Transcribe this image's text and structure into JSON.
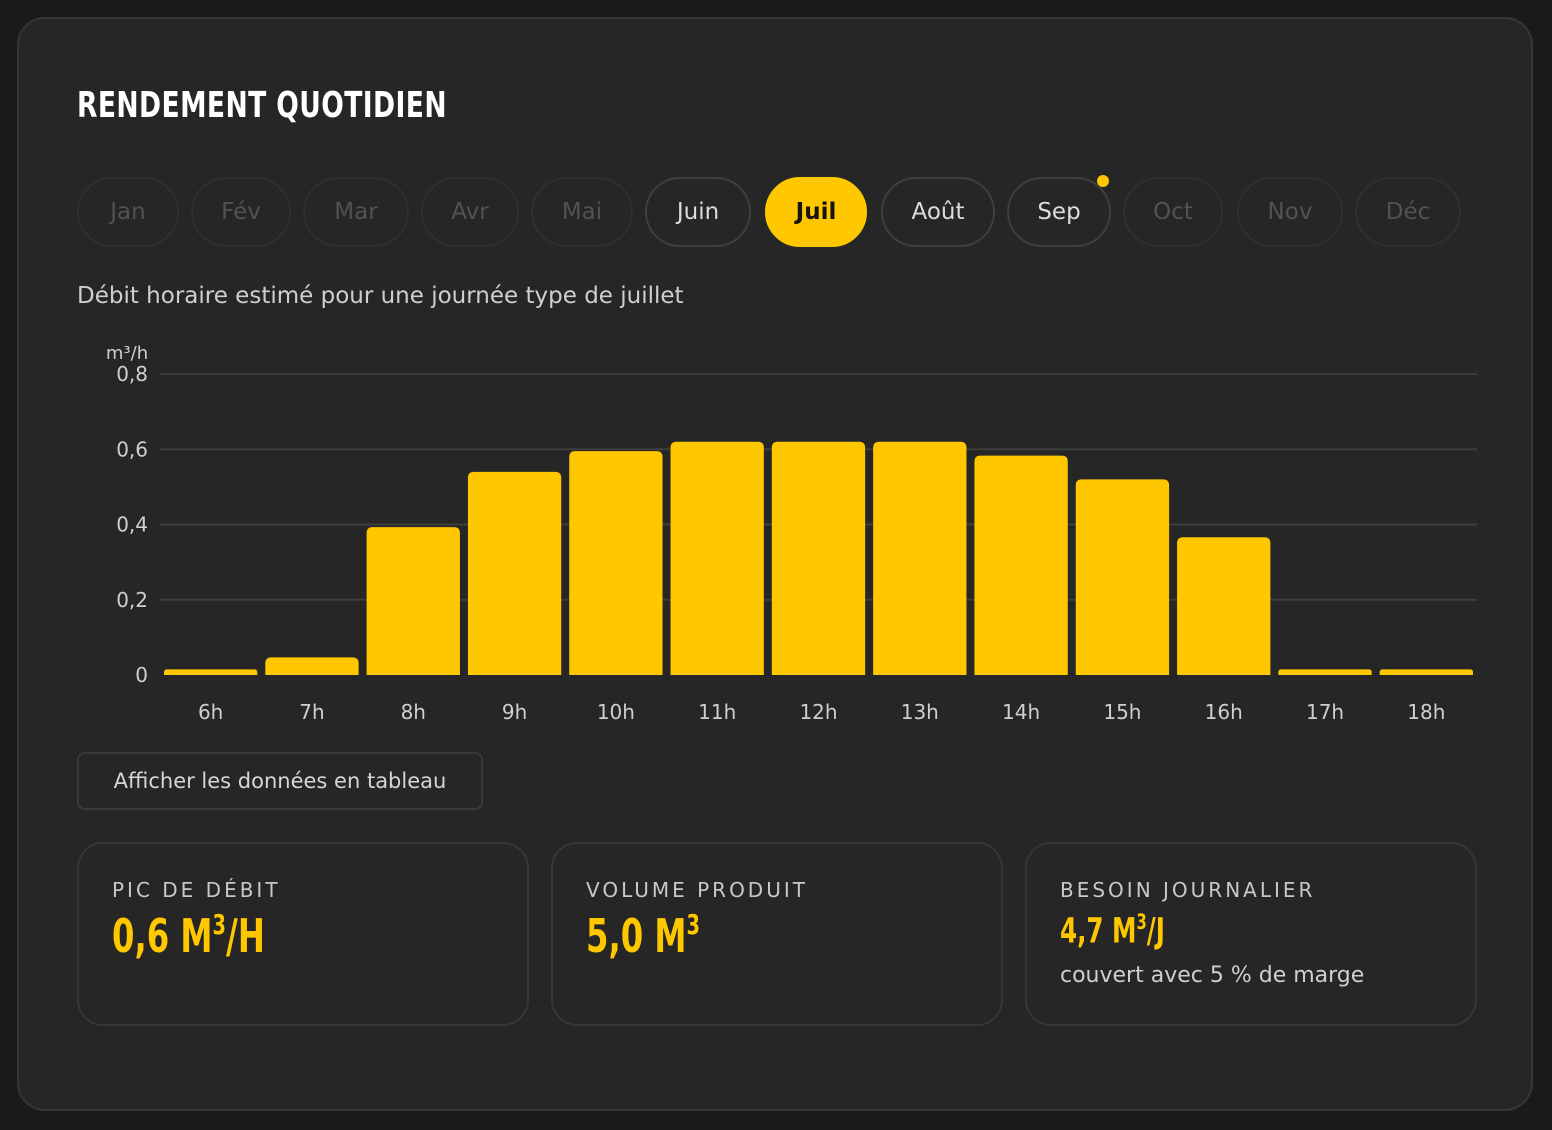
{
  "title": "RENDEMENT QUOTIDIEN",
  "months": [
    {
      "label": "Jan",
      "state": "disabled"
    },
    {
      "label": "Fév",
      "state": "disabled"
    },
    {
      "label": "Mar",
      "state": "disabled"
    },
    {
      "label": "Avr",
      "state": "disabled"
    },
    {
      "label": "Mai",
      "state": "disabled"
    },
    {
      "label": "Juin",
      "state": "available"
    },
    {
      "label": "Juil",
      "state": "active"
    },
    {
      "label": "Août",
      "state": "available"
    },
    {
      "label": "Sep",
      "state": "available",
      "dot": true
    },
    {
      "label": "Oct",
      "state": "disabled"
    },
    {
      "label": "Nov",
      "state": "disabled"
    },
    {
      "label": "Déc",
      "state": "disabled"
    }
  ],
  "subtitle": "Débit horaire estimé pour une journée type de juillet",
  "chart_data": {
    "type": "bar",
    "unit_label": "m³/h",
    "categories": [
      "6h",
      "7h",
      "8h",
      "9h",
      "10h",
      "11h",
      "12h",
      "13h",
      "14h",
      "15h",
      "16h",
      "17h",
      "18h"
    ],
    "values": [
      0.015,
      0.047,
      0.393,
      0.54,
      0.595,
      0.62,
      0.62,
      0.62,
      0.583,
      0.52,
      0.366,
      0.015,
      0.015
    ],
    "ylim": [
      0,
      0.8
    ],
    "yticks": [
      0,
      0.2,
      0.4,
      0.6,
      0.8
    ],
    "ytick_labels": [
      "0",
      "0,2",
      "0,4",
      "0,6",
      "0,8"
    ],
    "grid": true,
    "bar_color": "#ffc700"
  },
  "table_button_label": "Afficher les données en tableau",
  "stats": {
    "peak": {
      "label": "PIC DE DÉBIT",
      "value": "0,6 M",
      "sup": "3",
      "suffix": "/H"
    },
    "volume": {
      "label": "VOLUME PRODUIT",
      "value": "5,0 M",
      "sup": "3",
      "suffix": ""
    },
    "need": {
      "label": "BESOIN JOURNALIER",
      "value": "4,7 M",
      "sup": "3",
      "suffix": "/J",
      "note": "couvert avec 5 % de marge"
    }
  },
  "colors": {
    "accent": "#ffc700",
    "background": "#262626"
  }
}
